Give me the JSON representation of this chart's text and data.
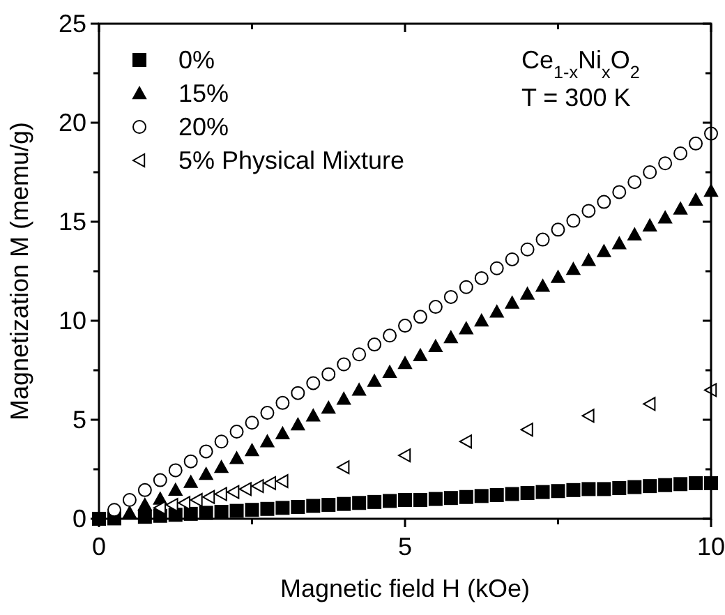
{
  "chart_data": {
    "type": "scatter",
    "xlabel": "Magnetic field H (kOe)",
    "ylabel": "Magnetization M (memu/g)",
    "xlim": [
      0,
      10
    ],
    "xticks": [
      0,
      {
        "value": 2.5,
        "label": null
      },
      5,
      {
        "value": 7.5,
        "label": null
      },
      10
    ],
    "ylim": [
      0,
      25
    ],
    "yticks": [
      0,
      {
        "value": 2.5,
        "label": null
      },
      5,
      {
        "value": 7.5,
        "label": null
      },
      10,
      {
        "value": 12.5,
        "label": null
      },
      15,
      {
        "value": 17.5,
        "label": null
      },
      20,
      {
        "value": 22.5,
        "label": null
      },
      25
    ],
    "legend": "top left",
    "grid": false,
    "annotations": [
      "Ce$_{1-x}$Ni$_{x}$O$_{2}$",
      "T = 300 K"
    ],
    "series": [
      {
        "name": "0%",
        "color": "#000000",
        "marker": "square",
        "x": [
          0,
          0.25,
          0.75,
          1,
          1.25,
          1.5,
          1.75,
          2,
          2.25,
          2.5,
          2.75,
          3,
          3.25,
          3.5,
          3.75,
          4,
          4.25,
          4.5,
          4.75,
          5,
          5.25,
          5.5,
          5.75,
          6,
          6.25,
          6.5,
          6.75,
          7,
          7.25,
          7.5,
          7.75,
          8,
          8.25,
          8.5,
          8.75,
          9,
          9.25,
          9.5,
          9.75,
          10
        ],
        "values": [
          0,
          0.02,
          0.1,
          0.15,
          0.2,
          0.25,
          0.3,
          0.35,
          0.4,
          0.45,
          0.5,
          0.55,
          0.6,
          0.65,
          0.7,
          0.75,
          0.8,
          0.85,
          0.9,
          0.95,
          0.95,
          1.0,
          1.05,
          1.1,
          1.15,
          1.2,
          1.25,
          1.3,
          1.35,
          1.4,
          1.45,
          1.5,
          1.5,
          1.55,
          1.6,
          1.65,
          1.7,
          1.75,
          1.8,
          1.8
        ]
      },
      {
        "name": "15%",
        "color": "#000000",
        "marker": "triangle",
        "x": [
          0.5,
          0.75,
          1,
          1.25,
          1.5,
          1.75,
          2,
          2.25,
          2.5,
          2.75,
          3,
          3.25,
          3.5,
          3.75,
          4,
          4.25,
          4.5,
          4.75,
          5,
          5.25,
          5.5,
          5.75,
          6,
          6.25,
          6.5,
          6.75,
          7,
          7.25,
          7.5,
          7.75,
          8,
          8.25,
          8.5,
          8.75,
          9,
          9.25,
          9.5,
          9.75,
          10
        ],
        "values": [
          0.3,
          0.7,
          1.0,
          1.45,
          1.85,
          2.25,
          2.6,
          3.05,
          3.45,
          3.9,
          4.3,
          4.75,
          5.2,
          5.6,
          6.05,
          6.5,
          6.95,
          7.4,
          7.85,
          8.25,
          8.7,
          9.15,
          9.6,
          10.0,
          10.45,
          10.9,
          11.35,
          11.75,
          12.2,
          12.6,
          13.05,
          13.5,
          13.9,
          14.35,
          14.8,
          15.2,
          15.65,
          16.1,
          16.55
        ]
      },
      {
        "name": "20%",
        "color": "#000000",
        "marker": "circle",
        "x": [
          0.25,
          0.5,
          0.75,
          1,
          1.25,
          1.5,
          1.75,
          2,
          2.25,
          2.5,
          2.75,
          3,
          3.25,
          3.5,
          3.75,
          4,
          4.25,
          4.5,
          4.75,
          5,
          5.25,
          5.5,
          5.75,
          6,
          6.25,
          6.5,
          6.75,
          7,
          7.25,
          7.5,
          7.75,
          8,
          8.25,
          8.5,
          8.75,
          9,
          9.25,
          9.5,
          9.75,
          10
        ],
        "values": [
          0.45,
          0.95,
          1.45,
          1.95,
          2.45,
          2.9,
          3.4,
          3.9,
          4.4,
          4.85,
          5.35,
          5.85,
          6.35,
          6.85,
          7.3,
          7.8,
          8.3,
          8.8,
          9.25,
          9.75,
          10.2,
          10.7,
          11.2,
          11.7,
          12.15,
          12.65,
          13.1,
          13.6,
          14.1,
          14.6,
          15.05,
          15.55,
          16.0,
          16.5,
          17.0,
          17.5,
          17.95,
          18.45,
          18.95,
          19.45
        ]
      },
      {
        "name": "5% Physical Mixture",
        "color": "#000000",
        "marker": "triangle-left",
        "x": [
          1,
          1.2,
          1.4,
          1.6,
          1.8,
          2,
          2.2,
          2.4,
          2.6,
          2.8,
          3,
          4,
          5,
          6,
          7,
          8,
          9,
          10
        ],
        "values": [
          0.55,
          0.7,
          0.8,
          0.95,
          1.1,
          1.25,
          1.35,
          1.5,
          1.65,
          1.8,
          1.9,
          2.6,
          3.2,
          3.9,
          4.5,
          5.2,
          5.8,
          6.5
        ]
      }
    ]
  }
}
